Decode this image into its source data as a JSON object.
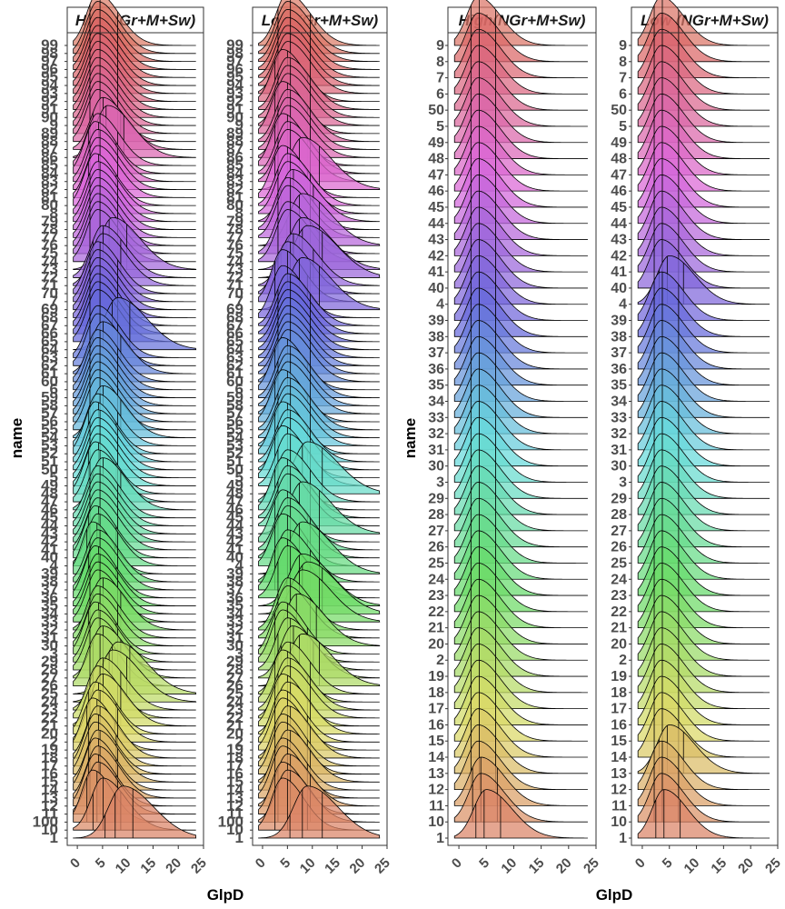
{
  "chart_data": [
    {
      "type": "ridgeline",
      "panel": "High (Gr+M+Sw)",
      "title": "High (Gr+M+Sw)",
      "xlabel": "GlpD",
      "ylabel": "name",
      "xlim": [
        -2,
        25
      ],
      "xticks": [
        0,
        5,
        10,
        15,
        20,
        25
      ],
      "categories": [
        "1",
        "10",
        "100",
        "11",
        "12",
        "13",
        "14",
        "15",
        "16",
        "17",
        "18",
        "19",
        "2",
        "20",
        "21",
        "22",
        "23",
        "24",
        "25",
        "26",
        "27",
        "28",
        "29",
        "3",
        "30",
        "31",
        "32",
        "33",
        "34",
        "35",
        "36",
        "37",
        "38",
        "39",
        "4",
        "40",
        "41",
        "42",
        "43",
        "44",
        "45",
        "46",
        "47",
        "48",
        "49",
        "5",
        "50",
        "51",
        "52",
        "53",
        "54",
        "55",
        "56",
        "57",
        "58",
        "59",
        "6",
        "60",
        "61",
        "62",
        "63",
        "64",
        "65",
        "66",
        "67",
        "68",
        "69",
        "7",
        "70",
        "71",
        "72",
        "73",
        "74",
        "75",
        "76",
        "77",
        "78",
        "79",
        "8",
        "80",
        "81",
        "82",
        "83",
        "84",
        "85",
        "86",
        "87",
        "88",
        "89",
        "9",
        "90",
        "91",
        "92",
        "93",
        "94",
        "95",
        "96",
        "97",
        "98",
        "99"
      ],
      "modes_approx": [
        9,
        5,
        3,
        4,
        3.5,
        4,
        3.5,
        4,
        3.5,
        3.5,
        4,
        3,
        4,
        3.5,
        5,
        4,
        5,
        7,
        8,
        4,
        5,
        4,
        4,
        3.5,
        4,
        4,
        5,
        4,
        4,
        4,
        3.5,
        4,
        4,
        3,
        4,
        3.5,
        4,
        4,
        4,
        4,
        4,
        5,
        4,
        3.5,
        4,
        4,
        4,
        4,
        3.5,
        4,
        5,
        4,
        4,
        4,
        4,
        4,
        4,
        4,
        5,
        4,
        4,
        8,
        4,
        4,
        4,
        4,
        4,
        4,
        4,
        5,
        5,
        7,
        4,
        4,
        4,
        4,
        4,
        4,
        4,
        3.5,
        4,
        4,
        4,
        3.5,
        4,
        6,
        5,
        4,
        4,
        4,
        4,
        4,
        4,
        4,
        4,
        4,
        4,
        4,
        4,
        4
      ],
      "quantile_lines": [
        2.5,
        4.5,
        8
      ]
    },
    {
      "type": "ridgeline",
      "panel": "Low (Gr+M+Sw)",
      "title": "Low (Gr+M+Sw)",
      "xlabel": "GlpD",
      "ylabel": "name",
      "xlim": [
        -2,
        25
      ],
      "xticks": [
        0,
        5,
        10,
        15,
        20,
        25
      ],
      "categories": [
        "1",
        "10",
        "100",
        "11",
        "12",
        "13",
        "14",
        "15",
        "16",
        "17",
        "18",
        "19",
        "2",
        "20",
        "21",
        "22",
        "23",
        "24",
        "25",
        "26",
        "27",
        "28",
        "29",
        "3",
        "30",
        "31",
        "32",
        "33",
        "34",
        "35",
        "36",
        "37",
        "38",
        "39",
        "4",
        "40",
        "41",
        "42",
        "43",
        "44",
        "45",
        "46",
        "47",
        "48",
        "49",
        "5",
        "50",
        "51",
        "52",
        "53",
        "54",
        "55",
        "56",
        "57",
        "58",
        "59",
        "6",
        "60",
        "61",
        "62",
        "63",
        "64",
        "65",
        "66",
        "67",
        "68",
        "69",
        "7",
        "70",
        "71",
        "72",
        "73",
        "74",
        "75",
        "76",
        "77",
        "78",
        "79",
        "8",
        "80",
        "81",
        "82",
        "83",
        "84",
        "85",
        "86",
        "87",
        "88",
        "89",
        "9",
        "90",
        "91",
        "92",
        "93",
        "94",
        "95",
        "96",
        "97",
        "98",
        "99"
      ],
      "modes_approx": [
        9,
        4,
        5,
        4,
        5,
        4,
        4,
        5,
        4,
        4,
        5,
        4,
        4,
        5,
        4,
        5,
        5,
        4,
        5,
        8,
        6,
        5,
        4,
        4,
        7,
        5,
        5,
        8,
        9,
        8,
        5,
        4,
        5,
        8,
        4,
        5,
        5,
        4,
        8,
        5,
        5,
        4,
        5,
        9,
        5,
        4,
        5,
        5,
        4,
        5,
        5,
        5,
        4,
        5,
        5,
        5,
        4,
        5,
        5,
        5,
        5,
        5,
        5,
        5,
        5,
        4,
        8,
        4,
        5,
        6,
        9,
        8,
        5,
        5,
        8,
        5,
        5,
        6,
        5,
        5,
        4,
        8,
        5,
        5,
        4,
        5,
        5,
        5,
        4,
        5,
        5,
        5,
        4,
        5,
        5,
        5,
        5,
        5,
        5,
        5
      ],
      "quantile_lines": [
        2.5,
        5,
        9
      ]
    },
    {
      "type": "ridgeline",
      "panel": "High(NGr+M+Sw)",
      "title": "High(NGr+M+Sw)",
      "xlabel": "GlpD",
      "ylabel": "name",
      "xlim": [
        -2,
        25
      ],
      "xticks": [
        0,
        5,
        10,
        15,
        20,
        25
      ],
      "categories": [
        "1",
        "10",
        "11",
        "12",
        "13",
        "14",
        "15",
        "16",
        "17",
        "18",
        "19",
        "2",
        "20",
        "21",
        "22",
        "23",
        "24",
        "25",
        "26",
        "27",
        "28",
        "29",
        "3",
        "30",
        "31",
        "32",
        "33",
        "34",
        "35",
        "36",
        "37",
        "38",
        "39",
        "4",
        "40",
        "41",
        "42",
        "43",
        "44",
        "45",
        "46",
        "47",
        "48",
        "49",
        "5",
        "50",
        "6",
        "7",
        "8",
        "9"
      ],
      "modes_approx": [
        5,
        4,
        4,
        3.5,
        3.5,
        3.5,
        3.5,
        3.5,
        3.5,
        3.5,
        3.5,
        3.5,
        3.5,
        3.5,
        3.5,
        3.5,
        3.5,
        3.5,
        3.5,
        3.5,
        3.5,
        3.5,
        3.5,
        3.5,
        3.5,
        3.5,
        3.5,
        3.5,
        3.5,
        3.5,
        3.5,
        3.5,
        3.5,
        3.5,
        3.5,
        3.5,
        3.5,
        3.5,
        3.5,
        3.5,
        3.5,
        3.5,
        3.5,
        3.5,
        3.5,
        3.5,
        3.5,
        3.5,
        3.5,
        3.5
      ],
      "quantile_lines": [
        2.5,
        4,
        7
      ]
    },
    {
      "type": "ridgeline",
      "panel": "Low (NGr+M+Sw)",
      "title": "Low (NGr+M+Sw)",
      "xlabel": "GlpD",
      "ylabel": "name",
      "xlim": [
        -2,
        25
      ],
      "xticks": [
        0,
        5,
        10,
        15,
        20,
        25
      ],
      "categories": [
        "1",
        "10",
        "11",
        "12",
        "13",
        "14",
        "15",
        "16",
        "17",
        "18",
        "19",
        "2",
        "20",
        "21",
        "22",
        "23",
        "24",
        "25",
        "26",
        "27",
        "28",
        "29",
        "3",
        "30",
        "31",
        "32",
        "33",
        "34",
        "35",
        "36",
        "37",
        "38",
        "39",
        "4",
        "40",
        "41",
        "42",
        "43",
        "44",
        "45",
        "46",
        "47",
        "48",
        "49",
        "5",
        "50",
        "6",
        "7",
        "8",
        "9"
      ],
      "modes_approx": [
        4,
        3.5,
        3.5,
        3.5,
        5,
        3.5,
        3.5,
        3.5,
        3.5,
        3.5,
        3.5,
        3.5,
        3.5,
        3.5,
        3.5,
        3.5,
        3.5,
        3.5,
        3.5,
        3.5,
        3.5,
        3.5,
        3.5,
        3.5,
        3.5,
        3.5,
        3.5,
        3.5,
        3.5,
        3.5,
        3.5,
        3.5,
        3.5,
        5,
        3.5,
        3.5,
        3.5,
        3.5,
        3.5,
        3.5,
        3.5,
        3.5,
        3.5,
        3.5,
        3.5,
        3.5,
        3.5,
        3.5,
        3.5,
        3.5
      ],
      "quantile_lines": [
        2.5,
        4,
        7
      ]
    }
  ]
}
